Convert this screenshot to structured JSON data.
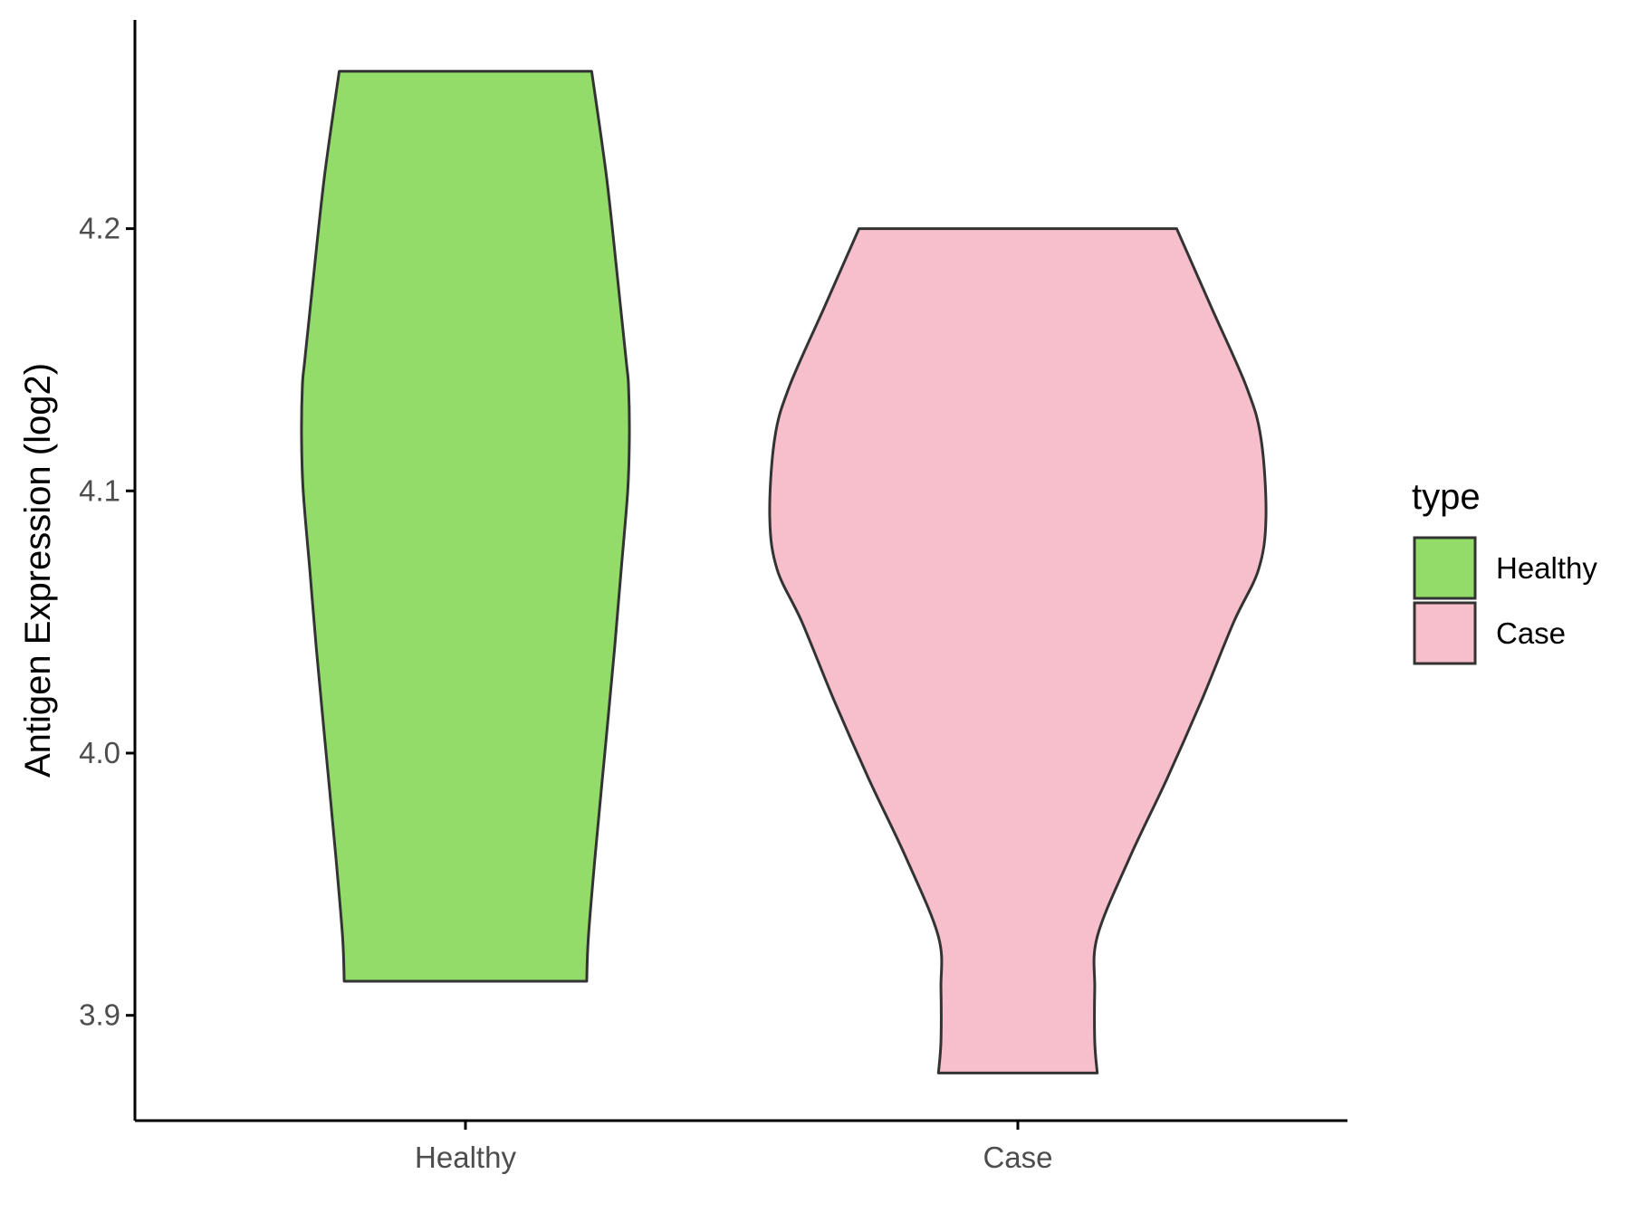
{
  "chart_data": {
    "type": "violin",
    "title": "",
    "xlabel": "",
    "ylabel": "Antigen Expression (log2)",
    "categories": [
      "Healthy",
      "Case"
    ],
    "ylim": [
      3.86,
      4.28
    ],
    "yticks": [
      3.9,
      4.0,
      4.1,
      4.2
    ],
    "ytick_labels": [
      "3.9",
      "4.0",
      "4.1",
      "4.2"
    ],
    "grid": false,
    "legend": {
      "title": "type",
      "position": "right",
      "entries": [
        {
          "label": "Healthy",
          "color": "#93DC6A"
        },
        {
          "label": "Case",
          "color": "#F7BFCB"
        }
      ]
    },
    "series": [
      {
        "category": "Healthy",
        "color": "#93DC6A",
        "min": 3.913,
        "max": 4.26,
        "profile": [
          [
            4.26,
            0.77
          ],
          [
            4.22,
            0.86
          ],
          [
            4.18,
            0.93
          ],
          [
            4.15,
            0.98
          ],
          [
            4.14,
            0.995
          ],
          [
            4.12,
            1.0
          ],
          [
            4.1,
            0.99
          ],
          [
            4.07,
            0.95
          ],
          [
            4.04,
            0.91
          ],
          [
            4.0,
            0.85
          ],
          [
            3.96,
            0.79
          ],
          [
            3.93,
            0.75
          ],
          [
            3.913,
            0.74
          ]
        ]
      },
      {
        "category": "Case",
        "color": "#F7BFCB",
        "min": 3.878,
        "max": 4.2,
        "profile": [
          [
            4.2,
            0.64
          ],
          [
            4.17,
            0.78
          ],
          [
            4.14,
            0.92
          ],
          [
            4.12,
            0.98
          ],
          [
            4.09,
            1.0
          ],
          [
            4.07,
            0.97
          ],
          [
            4.05,
            0.87
          ],
          [
            4.02,
            0.74
          ],
          [
            3.99,
            0.6
          ],
          [
            3.96,
            0.45
          ],
          [
            3.93,
            0.32
          ],
          [
            3.91,
            0.31
          ],
          [
            3.89,
            0.31
          ],
          [
            3.878,
            0.32
          ]
        ]
      }
    ]
  }
}
